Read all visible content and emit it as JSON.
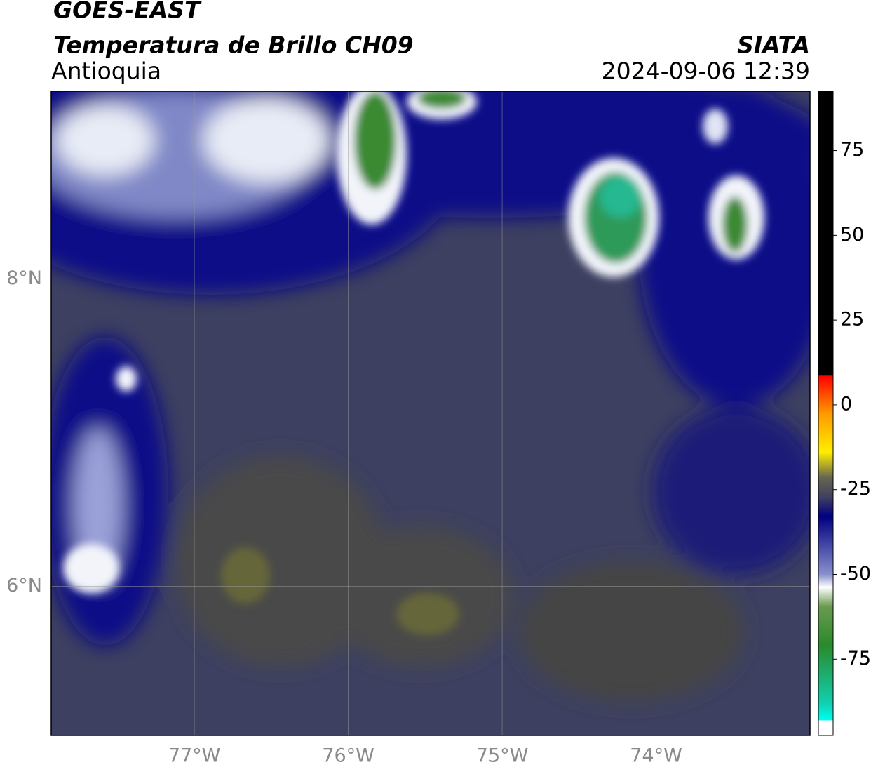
{
  "header": {
    "title": "GOES-EAST",
    "subtitle": "Temperatura de Brillo CH09",
    "region": "Antioquia",
    "source": "SIATA",
    "timestamp": "2024-09-06 12:39"
  },
  "map": {
    "xlim": [
      -77.93,
      -73.0
    ],
    "ylim": [
      5.03,
      9.22
    ],
    "xticks": [
      {
        "value": -77,
        "label": "77°W"
      },
      {
        "value": -76,
        "label": "76°W"
      },
      {
        "value": -75,
        "label": "75°W"
      },
      {
        "value": -74,
        "label": "74°W"
      }
    ],
    "yticks": [
      {
        "value": 6,
        "label": "6°N"
      },
      {
        "value": 8,
        "label": "8°N"
      }
    ],
    "grid": true
  },
  "colorbar": {
    "lim": [
      -97.5,
      92.5
    ],
    "ticks": [
      75,
      50,
      25,
      0,
      -25,
      -50,
      -75
    ]
  }
}
